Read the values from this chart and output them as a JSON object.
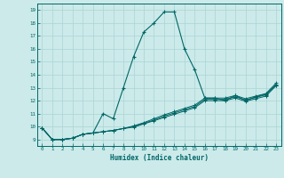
{
  "xlabel": "Humidex (Indice chaleur)",
  "bg_color": "#cceaea",
  "grid_color": "#aad4d4",
  "line_color": "#006666",
  "xlim": [
    -0.5,
    23.5
  ],
  "ylim": [
    8.5,
    19.5
  ],
  "yticks": [
    9,
    10,
    11,
    12,
    13,
    14,
    15,
    16,
    17,
    18,
    19
  ],
  "xticks": [
    0,
    1,
    2,
    3,
    4,
    5,
    6,
    7,
    8,
    9,
    10,
    11,
    12,
    13,
    14,
    15,
    16,
    17,
    18,
    19,
    20,
    21,
    22,
    23
  ],
  "main_x": [
    0,
    1,
    2,
    3,
    4,
    5,
    6,
    7,
    8,
    9,
    10,
    11,
    12,
    13,
    14,
    15,
    16,
    17,
    18,
    19,
    20,
    21,
    22,
    23
  ],
  "main_y": [
    9.9,
    9.0,
    9.0,
    9.1,
    9.4,
    9.5,
    11.0,
    10.6,
    13.0,
    15.4,
    17.3,
    18.0,
    18.85,
    18.85,
    16.0,
    14.4,
    12.2,
    12.2,
    12.0,
    12.4,
    12.0,
    12.3,
    12.5,
    13.2
  ],
  "ref1_x": [
    0,
    1,
    2,
    3,
    4,
    5,
    6,
    7,
    8,
    9,
    10,
    11,
    12,
    13,
    14,
    15,
    16,
    17,
    18,
    19,
    20,
    21,
    22,
    23
  ],
  "ref1_y": [
    9.9,
    9.0,
    9.0,
    9.1,
    9.4,
    9.5,
    9.6,
    9.7,
    9.85,
    10.0,
    10.25,
    10.5,
    10.8,
    11.05,
    11.3,
    11.55,
    12.1,
    12.1,
    12.1,
    12.3,
    12.05,
    12.25,
    12.45,
    13.25
  ],
  "ref2_x": [
    0,
    1,
    2,
    3,
    4,
    5,
    6,
    7,
    8,
    9,
    10,
    11,
    12,
    13,
    14,
    15,
    16,
    17,
    18,
    19,
    20,
    21,
    22,
    23
  ],
  "ref2_y": [
    9.9,
    9.0,
    9.0,
    9.1,
    9.4,
    9.5,
    9.6,
    9.7,
    9.85,
    10.05,
    10.3,
    10.6,
    10.9,
    11.15,
    11.4,
    11.65,
    12.2,
    12.2,
    12.2,
    12.4,
    12.15,
    12.35,
    12.55,
    13.35
  ],
  "ref3_x": [
    0,
    1,
    2,
    3,
    4,
    5,
    6,
    7,
    8,
    9,
    10,
    11,
    12,
    13,
    14,
    15,
    16,
    17,
    18,
    19,
    20,
    21,
    22,
    23
  ],
  "ref3_y": [
    9.9,
    9.0,
    9.0,
    9.1,
    9.4,
    9.5,
    9.6,
    9.7,
    9.85,
    9.95,
    10.2,
    10.45,
    10.7,
    10.95,
    11.2,
    11.45,
    12.0,
    12.0,
    12.0,
    12.2,
    11.95,
    12.15,
    12.35,
    13.15
  ]
}
